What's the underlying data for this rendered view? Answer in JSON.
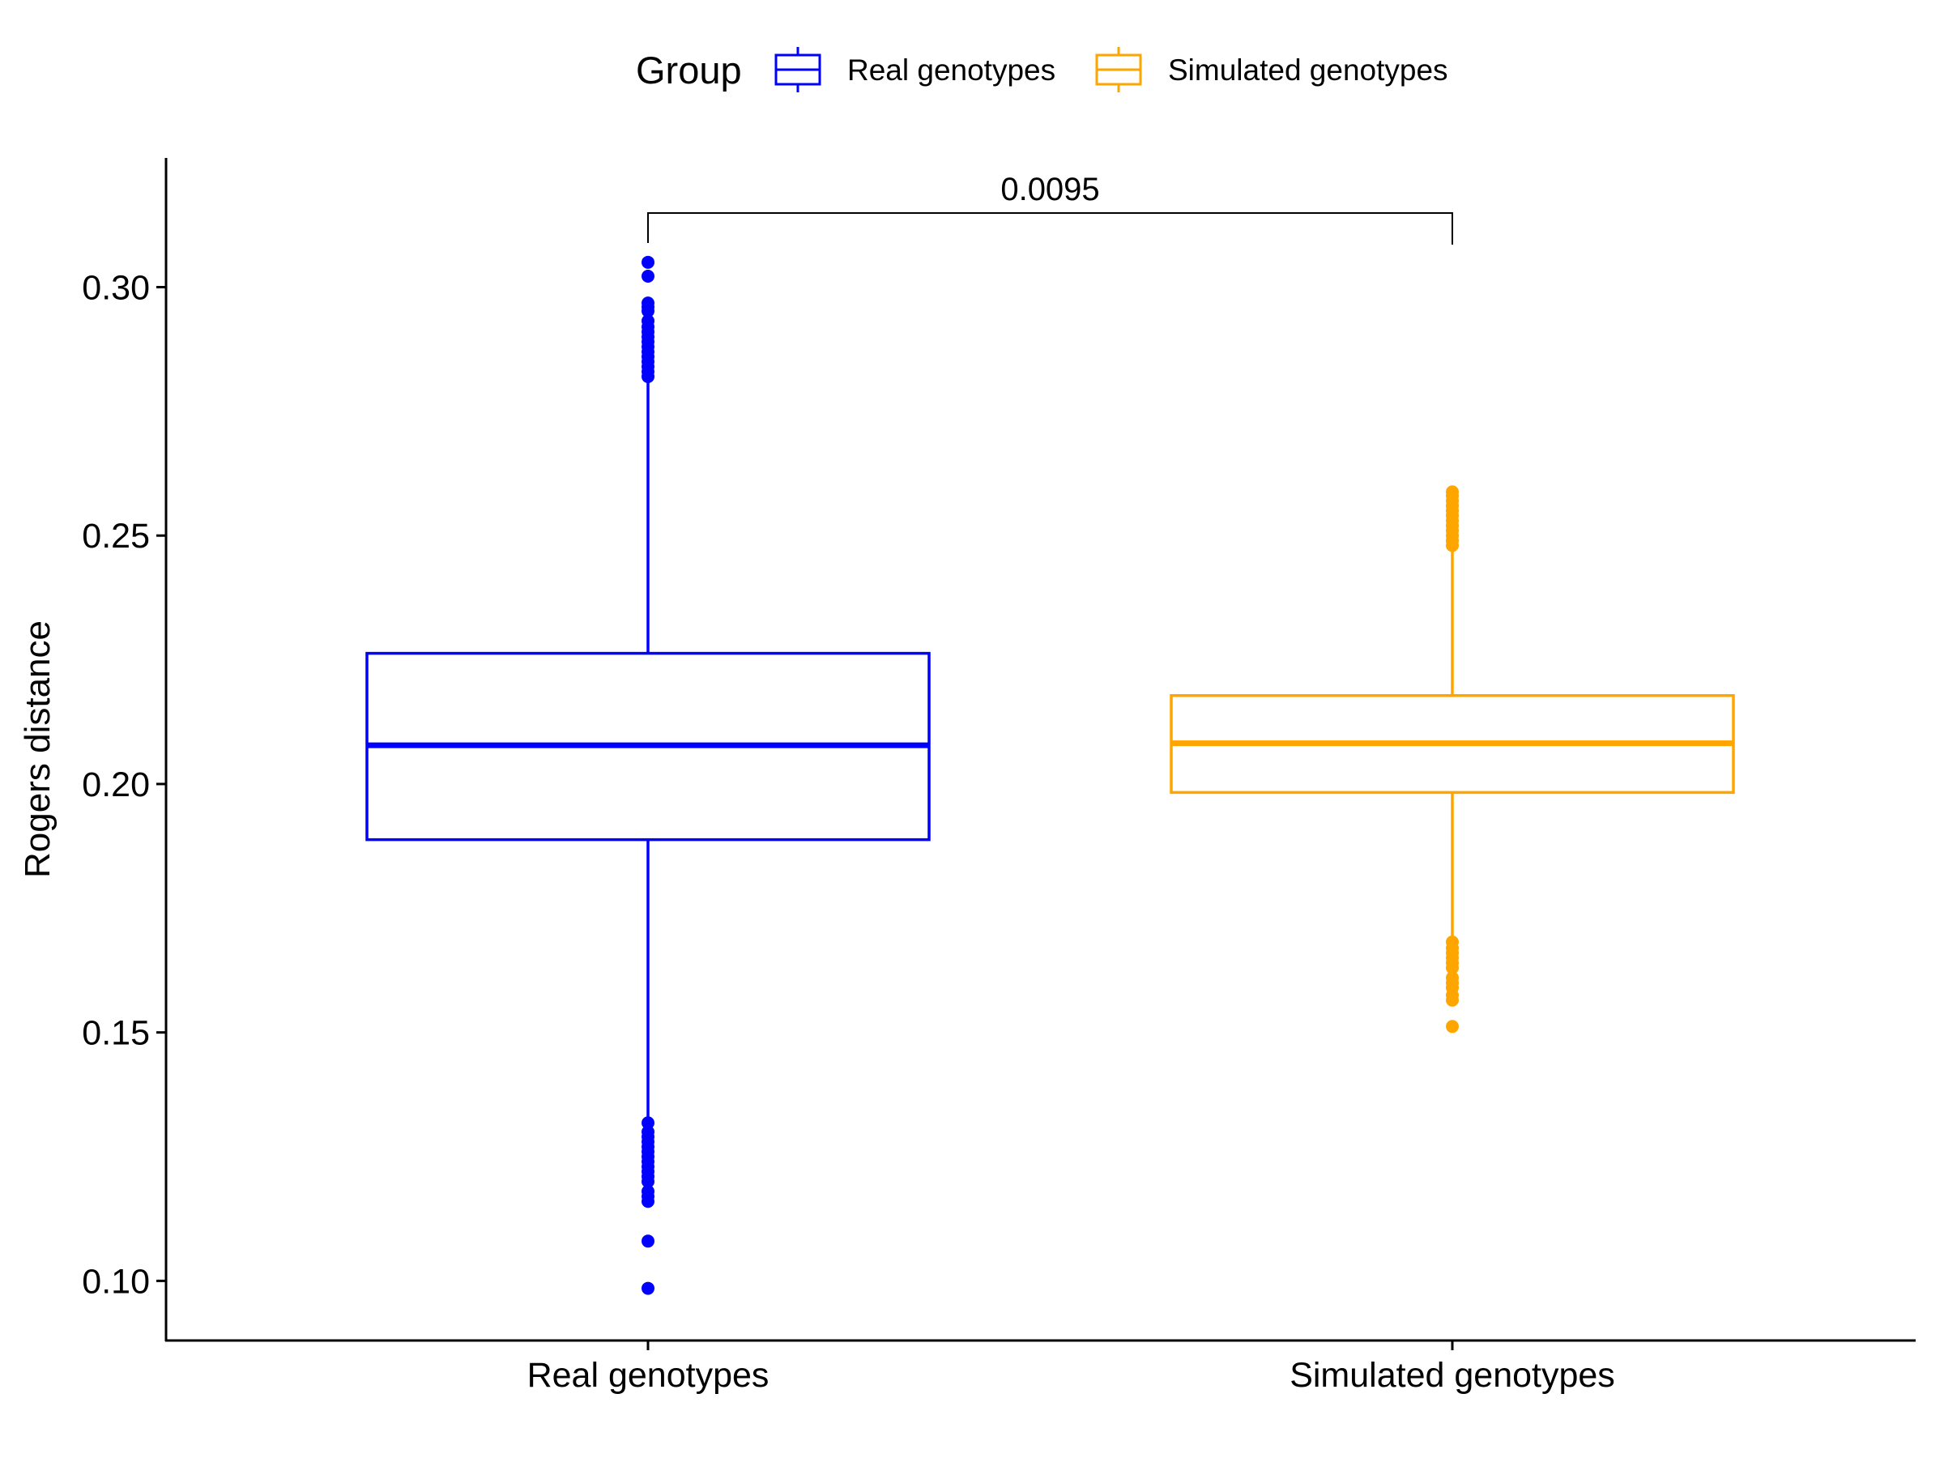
{
  "chart_data": {
    "type": "boxplot",
    "ylabel": "Rogers distance",
    "xlabel": "",
    "ylim": [
      0.088,
      0.326
    ],
    "yticks": [
      "0.10",
      "0.15",
      "0.20",
      "0.25",
      "0.30"
    ],
    "legend": {
      "title": "Group",
      "position": "top",
      "entries": [
        "Real genotypes",
        "Simulated genotypes"
      ]
    },
    "categories": [
      "Real genotypes",
      "Simulated genotypes"
    ],
    "series": [
      {
        "name": "Real genotypes",
        "color": "#0000ff",
        "q1": 0.1888,
        "median": 0.2078,
        "q3": 0.2263,
        "whisker_low": 0.1325,
        "whisker_high": 0.2816,
        "outliers": [
          0.305,
          0.3022,
          0.2968,
          0.296,
          0.2952,
          0.2932,
          0.292,
          0.291,
          0.29,
          0.289,
          0.288,
          0.287,
          0.286,
          0.285,
          0.284,
          0.283,
          0.282,
          0.1318,
          0.13,
          0.129,
          0.128,
          0.127,
          0.126,
          0.125,
          0.124,
          0.123,
          0.122,
          0.121,
          0.12,
          0.118,
          0.117,
          0.116,
          0.108,
          0.0985
        ]
      },
      {
        "name": "Simulated genotypes",
        "color": "#ffa500",
        "q1": 0.1983,
        "median": 0.2082,
        "q3": 0.2178,
        "whisker_low": 0.1688,
        "whisker_high": 0.2472,
        "outliers": [
          0.2588,
          0.258,
          0.257,
          0.256,
          0.255,
          0.254,
          0.253,
          0.252,
          0.251,
          0.25,
          0.249,
          0.248,
          0.1682,
          0.167,
          0.166,
          0.165,
          0.164,
          0.163,
          0.161,
          0.16,
          0.159,
          0.1575,
          0.1565,
          0.1512
        ]
      }
    ],
    "annotation": {
      "text": "0.0095",
      "between": [
        "Real genotypes",
        "Simulated genotypes"
      ]
    }
  }
}
